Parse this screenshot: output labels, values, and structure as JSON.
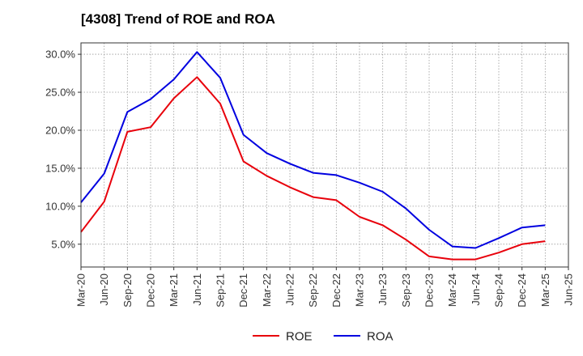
{
  "chart_data": {
    "type": "line",
    "title": "[4308]  Trend of ROE and ROA",
    "xlabel": "",
    "ylabel": "",
    "categories": [
      "Mar-20",
      "Jun-20",
      "Sep-20",
      "Dec-20",
      "Mar-21",
      "Jun-21",
      "Sep-21",
      "Dec-21",
      "Mar-22",
      "Jun-22",
      "Sep-22",
      "Dec-22",
      "Mar-23",
      "Jun-23",
      "Sep-23",
      "Dec-23",
      "Mar-24",
      "Jun-24",
      "Sep-24",
      "Dec-24",
      "Mar-25",
      "Jun-25"
    ],
    "y_ticks": [
      "5.0%",
      "10.0%",
      "15.0%",
      "20.0%",
      "25.0%",
      "30.0%"
    ],
    "ylim": [
      2.0,
      31.5
    ],
    "grid": true,
    "legend_position": "bottom",
    "series": [
      {
        "name": "ROE",
        "color": "#e8000b",
        "values": [
          6.6,
          10.6,
          19.8,
          20.4,
          24.2,
          27.0,
          23.5,
          15.9,
          14.0,
          12.5,
          11.2,
          10.8,
          8.6,
          7.5,
          5.6,
          3.4,
          3.0,
          3.0,
          3.9,
          5.0,
          5.4,
          null
        ]
      },
      {
        "name": "ROA",
        "color": "#0000e0",
        "values": [
          10.5,
          14.3,
          22.4,
          24.1,
          26.7,
          30.3,
          26.9,
          19.4,
          17.0,
          15.6,
          14.4,
          14.1,
          13.1,
          11.9,
          9.7,
          6.9,
          4.7,
          4.5,
          5.8,
          7.2,
          7.5,
          null
        ]
      }
    ]
  }
}
